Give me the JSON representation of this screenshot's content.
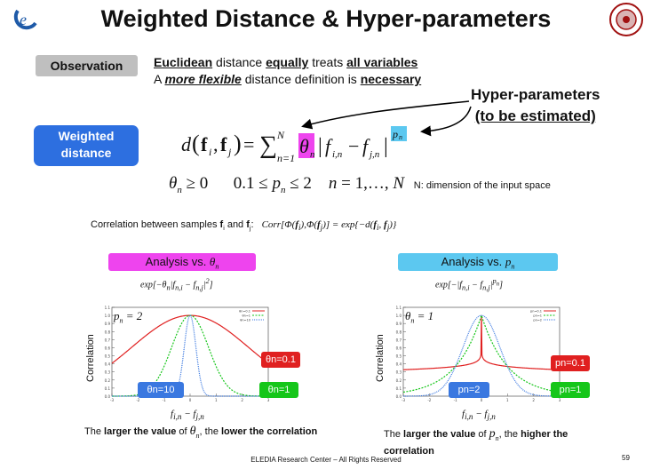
{
  "title": "Weighted Distance & Hyper-parameters",
  "observation": {
    "label": "Observation",
    "line1": {
      "w1": "Euclidean",
      "t1": " distance ",
      "w2": "equally",
      "t2": " treats ",
      "w3": "all variables"
    },
    "line2": {
      "t1": "A ",
      "w1": "more flexible",
      "t2": " distance definition is ",
      "w2": "necessary"
    }
  },
  "hyper": {
    "line1": "Hyper-parameters",
    "line2": "(to be estimated)"
  },
  "weighted": {
    "line1": "Weighted",
    "line2": "distance"
  },
  "constraints": {
    "note": "N: dimension of the input space"
  },
  "correlation_text": "Correlation between samples",
  "analysis_theta": {
    "label": "Analysis vs. "
  },
  "analysis_p": {
    "label": "Analysis vs. "
  },
  "plot_left": {
    "ylabel": "Correlation",
    "annotation": "p",
    "legend": [
      "θn=0.1",
      "θn=1",
      "θn=10"
    ],
    "tags": {
      "red": "θn=0.1",
      "blue": "θn=10",
      "green": "θn=1"
    },
    "colors": {
      "red": "#e02020",
      "blue": "#3a78e0",
      "green": "#16c61a"
    }
  },
  "plot_right": {
    "ylabel": "Correlation",
    "legend": [
      "pn=0.1",
      "pn=1",
      "pn=2"
    ],
    "tags": {
      "red": "pn=0.1",
      "blue": "pn=2",
      "green": "pn=1"
    },
    "colors": {
      "red": "#e02020",
      "blue": "#3a78e0",
      "green": "#16c61a"
    }
  },
  "bottom_left": {
    "t1": "The ",
    "b1": "larger the value",
    "t2": " of ",
    "t3": ", the ",
    "b2": "lower the correlation"
  },
  "bottom_right": {
    "t1": "The ",
    "b1": "larger the value",
    "t2": " of ",
    "t3": ", the ",
    "b2": "higher the correlation"
  },
  "footer": "ELEDIA Research Center – All Rights Reserved",
  "page_number": "59"
}
